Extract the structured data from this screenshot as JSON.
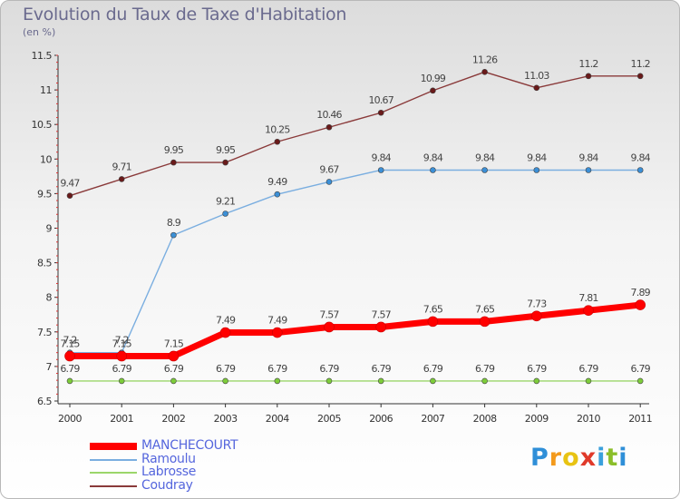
{
  "title": "Evolution du Taux de Taxe d'Habitation",
  "subtitle": "(en %)",
  "brand": {
    "letters": [
      "P",
      "r",
      "o",
      "x",
      "i",
      "t",
      "i"
    ],
    "colors": [
      "#2f8fd8",
      "#f39a1c",
      "#e8c313",
      "#e03a2a",
      "#3aa0dc",
      "#8bbe2a",
      "#2f8fd8"
    ]
  },
  "chart_data": {
    "type": "line",
    "x": [
      "2000",
      "2001",
      "2002",
      "2003",
      "2004",
      "2005",
      "2006",
      "2007",
      "2008",
      "2009",
      "2010",
      "2011"
    ],
    "ylim": [
      6.5,
      11.5
    ],
    "yticks": [
      "6.5",
      "7",
      "7.5",
      "8",
      "8.5",
      "9",
      "9.5",
      "10",
      "10.5",
      "11",
      "11.5"
    ],
    "grid": false,
    "legend_position": "bottom-left",
    "series": [
      {
        "name": "MANCHECOURT",
        "color": "#ff0000",
        "values": [
          7.15,
          7.15,
          7.15,
          7.49,
          7.49,
          7.57,
          7.57,
          7.65,
          7.65,
          7.73,
          7.81,
          7.89
        ],
        "labels": [
          "7.15",
          "7.15",
          "7.15",
          "7.49",
          "7.49",
          "7.57",
          "7.57",
          "7.65",
          "7.65",
          "7.73",
          "7.81",
          "7.89"
        ]
      },
      {
        "name": "Ramoulu",
        "color": "#7aaee0",
        "values": [
          7.2,
          7.2,
          8.9,
          9.21,
          9.49,
          9.67,
          9.84,
          9.84,
          9.84,
          9.84,
          9.84,
          9.84
        ],
        "labels": [
          "7.2",
          "7.2",
          "8.9",
          "9.21",
          "9.49",
          "9.67",
          "9.84",
          "9.84",
          "9.84",
          "9.84",
          "9.84",
          "9.84"
        ]
      },
      {
        "name": "Labrosse",
        "color": "#9bd66a",
        "values": [
          6.79,
          6.79,
          6.79,
          6.79,
          6.79,
          6.79,
          6.79,
          6.79,
          6.79,
          6.79,
          6.79,
          6.79
        ],
        "labels": [
          "6.79",
          "6.79",
          "6.79",
          "6.79",
          "6.79",
          "6.79",
          "6.79",
          "6.79",
          "6.79",
          "6.79",
          "6.79",
          "6.79"
        ]
      },
      {
        "name": "Coudray",
        "color": "#8a3a3a",
        "values": [
          9.47,
          9.71,
          9.95,
          9.95,
          10.25,
          10.46,
          10.67,
          10.99,
          11.26,
          11.03,
          11.2,
          11.2
        ],
        "labels": [
          "9.47",
          "9.71",
          "9.95",
          "9.95",
          "10.25",
          "10.46",
          "10.67",
          "10.99",
          "11.26",
          "11.03",
          "11.2",
          "11.2"
        ]
      }
    ]
  }
}
